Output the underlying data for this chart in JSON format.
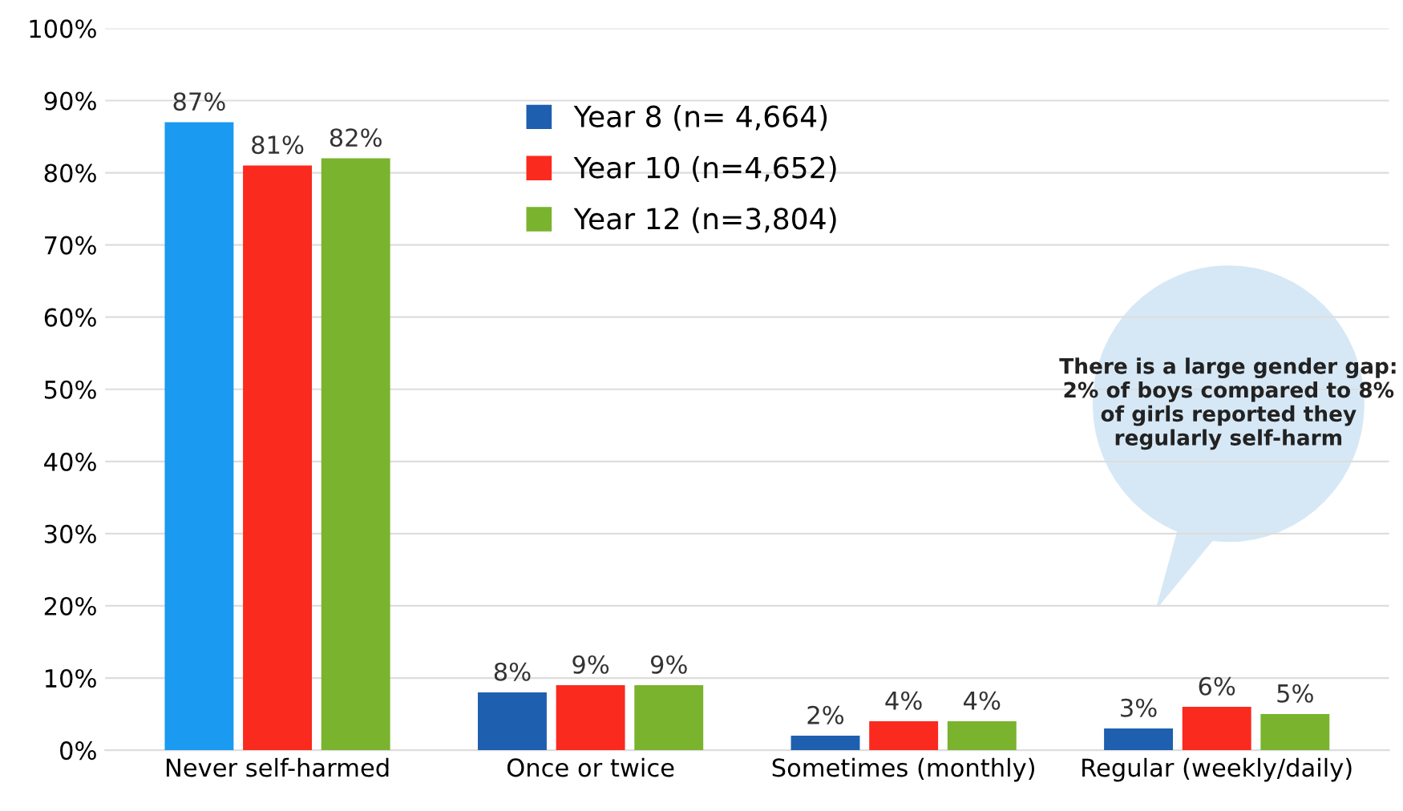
{
  "chart_data": {
    "type": "bar",
    "categories": [
      "Never self-harmed",
      "Once or twice",
      "Sometimes (monthly)",
      "Regular (weekly/daily)"
    ],
    "series": [
      {
        "name": "Year 8 (n= 4,664)",
        "color": "#1f5faf",
        "colors": [
          "#1a9af0",
          "#1f5faf",
          "#1f5faf",
          "#1f5faf"
        ],
        "values": [
          87,
          8,
          2,
          3
        ],
        "value_labels": [
          "87%",
          "8%",
          "2%",
          "3%"
        ]
      },
      {
        "name": "Year 10 (n=4,652)",
        "color": "#fa2a1e",
        "values": [
          81,
          9,
          4,
          6
        ],
        "value_labels": [
          "81%",
          "9%",
          "4%",
          "6%"
        ]
      },
      {
        "name": "Year 12 (n=3,804)",
        "color": "#7ab32e",
        "values": [
          82,
          9,
          4,
          5
        ],
        "value_labels": [
          "82%",
          "9%",
          "4%",
          "5%"
        ]
      }
    ],
    "ylim": [
      0,
      100
    ],
    "yticks": [
      {
        "value": 0,
        "label": "0%"
      },
      {
        "value": 10,
        "label": "10%"
      },
      {
        "value": 20,
        "label": "20%"
      },
      {
        "value": 30,
        "label": "30%"
      },
      {
        "value": 40,
        "label": "40%"
      },
      {
        "value": 50,
        "label": "50%"
      },
      {
        "value": 60,
        "label": "60%"
      },
      {
        "value": 70,
        "label": "70%"
      },
      {
        "value": 80,
        "label": "80%"
      },
      {
        "value": 90,
        "label": "90%"
      },
      {
        "value": 100,
        "label": "100%"
      }
    ],
    "grid": "y",
    "legend": "top",
    "annotations": [
      "There is a large gender gap: 2% of boys compared to 8% of girls reported they regularly self-harm"
    ]
  }
}
